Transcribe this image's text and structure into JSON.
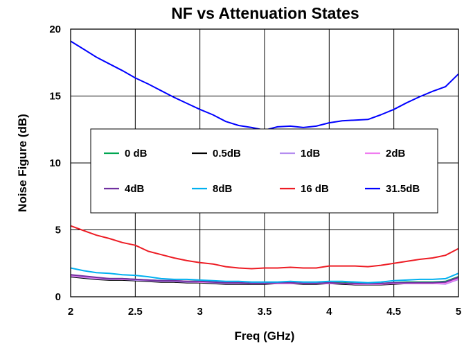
{
  "chart_data": {
    "type": "line",
    "title": "NF vs Attenuation States",
    "xlabel": "Freq (GHz)",
    "ylabel": "Noise Figure (dB)",
    "xlim": [
      2,
      5
    ],
    "ylim": [
      0,
      20
    ],
    "xticks": [
      2,
      2.5,
      3,
      3.5,
      4,
      4.5,
      5
    ],
    "yticks": [
      0,
      5,
      10,
      15,
      20
    ],
    "xtick_labels": [
      "2",
      "2.5",
      "3",
      "3.5",
      "4",
      "4.5",
      "5"
    ],
    "ytick_labels": [
      "0",
      "5",
      "10",
      "15",
      "20"
    ],
    "grid": true,
    "legend": "inside-center",
    "x": [
      2.0,
      2.1,
      2.2,
      2.3,
      2.4,
      2.5,
      2.6,
      2.7,
      2.8,
      2.9,
      3.0,
      3.1,
      3.2,
      3.3,
      3.4,
      3.5,
      3.6,
      3.7,
      3.8,
      3.9,
      4.0,
      4.1,
      4.2,
      4.3,
      4.4,
      4.5,
      4.6,
      4.7,
      4.8,
      4.9,
      5.0
    ],
    "series": [
      {
        "name": "0 dB",
        "color": "#00a651",
        "values": [
          1.6,
          1.5,
          1.4,
          1.35,
          1.35,
          1.3,
          1.25,
          1.2,
          1.2,
          1.15,
          1.15,
          1.1,
          1.05,
          1.05,
          1.0,
          1.0,
          1.05,
          1.05,
          1.0,
          1.0,
          1.05,
          1.05,
          1.0,
          1.0,
          1.0,
          1.05,
          1.1,
          1.1,
          1.1,
          1.15,
          1.5
        ]
      },
      {
        "name": "0.5dB",
        "color": "#000000",
        "values": [
          1.5,
          1.4,
          1.3,
          1.25,
          1.25,
          1.2,
          1.15,
          1.1,
          1.1,
          1.05,
          1.05,
          1.0,
          0.95,
          0.95,
          0.95,
          0.95,
          1.0,
          1.0,
          0.95,
          0.95,
          1.0,
          0.95,
          0.9,
          0.9,
          0.9,
          0.95,
          1.0,
          1.0,
          1.0,
          1.0,
          1.4
        ]
      },
      {
        "name": "1dB",
        "color": "#b48cf0",
        "values": [
          1.55,
          1.45,
          1.35,
          1.3,
          1.3,
          1.25,
          1.2,
          1.15,
          1.15,
          1.1,
          1.1,
          1.05,
          1.0,
          1.0,
          1.0,
          1.0,
          1.0,
          1.0,
          1.0,
          1.0,
          1.0,
          1.0,
          0.95,
          0.95,
          0.95,
          1.0,
          1.0,
          1.0,
          1.0,
          0.95,
          1.3
        ]
      },
      {
        "name": "2dB",
        "color": "#f07cf0",
        "values": [
          1.6,
          1.5,
          1.4,
          1.35,
          1.3,
          1.3,
          1.25,
          1.2,
          1.2,
          1.15,
          1.1,
          1.1,
          1.05,
          1.05,
          1.0,
          1.0,
          1.0,
          1.0,
          1.0,
          1.0,
          1.0,
          1.0,
          0.95,
          0.95,
          0.95,
          1.0,
          1.0,
          1.0,
          1.0,
          1.0,
          1.35
        ]
      },
      {
        "name": "4dB",
        "color": "#7030a0",
        "values": [
          1.65,
          1.55,
          1.45,
          1.35,
          1.35,
          1.3,
          1.25,
          1.2,
          1.2,
          1.15,
          1.15,
          1.1,
          1.05,
          1.05,
          1.0,
          1.0,
          1.05,
          1.05,
          1.0,
          1.0,
          1.05,
          1.0,
          1.0,
          1.0,
          1.0,
          1.05,
          1.05,
          1.05,
          1.05,
          1.1,
          1.45
        ]
      },
      {
        "name": "8dB",
        "color": "#00b0f0",
        "values": [
          2.15,
          1.95,
          1.8,
          1.75,
          1.65,
          1.6,
          1.5,
          1.35,
          1.3,
          1.3,
          1.25,
          1.2,
          1.15,
          1.15,
          1.1,
          1.1,
          1.1,
          1.15,
          1.1,
          1.1,
          1.15,
          1.15,
          1.1,
          1.05,
          1.1,
          1.2,
          1.25,
          1.3,
          1.3,
          1.35,
          1.75
        ]
      },
      {
        "name": "16 dB",
        "color": "#ed1c24",
        "values": [
          5.3,
          4.95,
          4.6,
          4.35,
          4.05,
          3.85,
          3.4,
          3.15,
          2.9,
          2.7,
          2.55,
          2.45,
          2.25,
          2.15,
          2.1,
          2.15,
          2.15,
          2.2,
          2.15,
          2.15,
          2.3,
          2.3,
          2.3,
          2.25,
          2.35,
          2.5,
          2.65,
          2.8,
          2.9,
          3.1,
          3.6
        ]
      },
      {
        "name": "31.5dB",
        "color": "#0000ff",
        "values": [
          19.1,
          18.5,
          17.9,
          17.4,
          16.9,
          16.35,
          15.9,
          15.4,
          14.9,
          14.45,
          14.0,
          13.6,
          13.1,
          12.8,
          12.65,
          12.45,
          12.7,
          12.75,
          12.65,
          12.75,
          13.0,
          13.15,
          13.2,
          13.25,
          13.6,
          14.0,
          14.5,
          14.95,
          15.35,
          15.7,
          16.65
        ]
      }
    ]
  }
}
